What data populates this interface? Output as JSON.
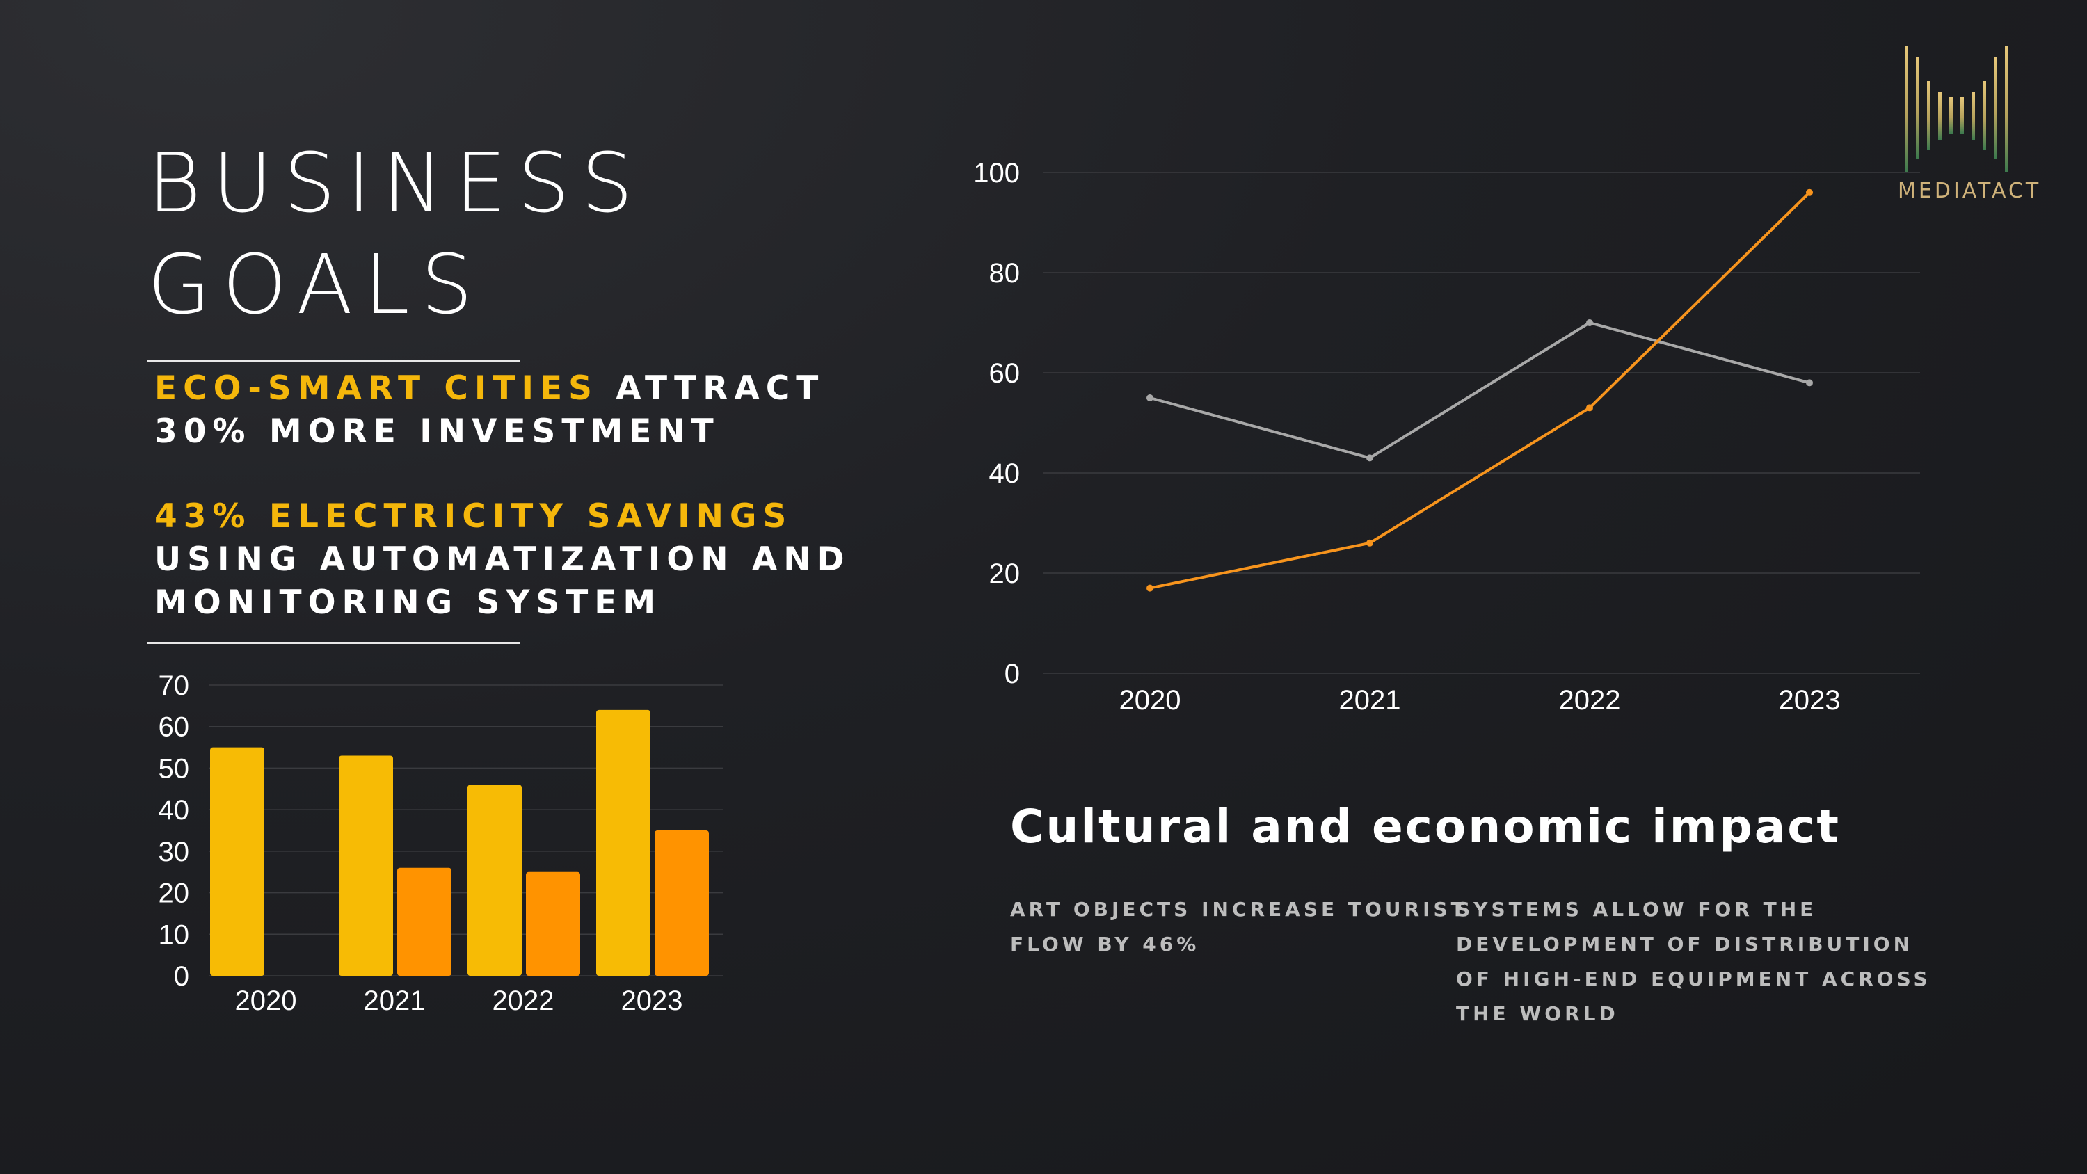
{
  "title": {
    "line1": "BUSINESS",
    "line2": "GOALS"
  },
  "stats": {
    "stat1_highlight": "ECO-SMART CITIES",
    "stat1_rest": " ATTRACT",
    "stat1_line2": "30% MORE INVESTMENT",
    "stat2_highlight": "43% ELECTRICITY SAVINGS",
    "stat2_line2": "USING AUTOMATIZATION AND",
    "stat2_line3": "MONITORING SYSTEM"
  },
  "logo": {
    "text": "MEDIATACT"
  },
  "impact": {
    "title": "Cultural and economic impact",
    "text1_line1": "ART OBJECTS INCREASE TOURIST",
    "text1_line2": "FLOW BY 46%",
    "text2_line1": "SYSTEMS ALLOW FOR THE",
    "text2_line2": "DEVELOPMENT OF DISTRIBUTION",
    "text2_line3": "OF HIGH-END EQUIPMENT ACROSS",
    "text2_line4": "THE WORLD"
  },
  "colors": {
    "background": "#1d1e21",
    "accent": "#f5b70b",
    "bar_series_1": "#f7bb05",
    "bar_series_2": "#ff9300",
    "line_series_1": "#a8a8a8",
    "line_series_2": "#f7941d",
    "grid": "#3a3b3f"
  },
  "chart_data": [
    {
      "type": "bar",
      "categories": [
        "2020",
        "2021",
        "2022",
        "2023"
      ],
      "series": [
        {
          "values": [
            55,
            53,
            46,
            64
          ]
        },
        {
          "values": [
            0,
            26,
            25,
            35
          ]
        }
      ],
      "ylim": [
        0,
        70
      ],
      "yticks": [
        0,
        10,
        20,
        30,
        40,
        50,
        60,
        70
      ],
      "grid": true
    },
    {
      "type": "line",
      "categories": [
        "2020",
        "2021",
        "2022",
        "2023"
      ],
      "series": [
        {
          "values": [
            55,
            43,
            70,
            58
          ]
        },
        {
          "values": [
            17,
            26,
            53,
            96
          ]
        }
      ],
      "ylim": [
        0,
        100
      ],
      "yticks": [
        0,
        20,
        40,
        60,
        80,
        100
      ],
      "grid": true
    }
  ]
}
